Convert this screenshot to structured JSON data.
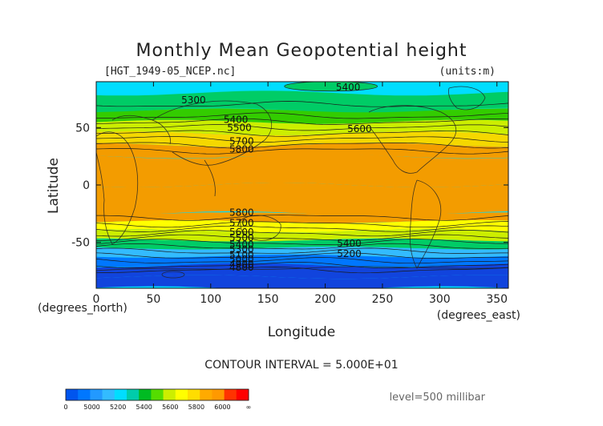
{
  "chart_data": {
    "type": "heatmap",
    "title": "Monthly Mean Geopotential height",
    "file_label": "[HGT_1949-05_NCEP.nc]",
    "units_label": "(units:m)",
    "xlabel": "Longitude",
    "ylabel": "Latitude",
    "x_unit_label": "(degrees_north)",
    "x_unit_label_right": "(degrees_east)",
    "xlim": [
      0,
      360
    ],
    "ylim": [
      -90,
      90
    ],
    "x_ticks": [
      0,
      50,
      100,
      150,
      200,
      250,
      300,
      350
    ],
    "y_ticks": [
      50,
      0,
      -50
    ],
    "contour_interval_text": "CONTOUR INTERVAL = 5.000E+01",
    "level_text": "level=500 millibar",
    "colorbar": {
      "colors": [
        "#0055ee",
        "#0077ff",
        "#2299ff",
        "#33bbff",
        "#00ddff",
        "#00ccaa",
        "#00bb22",
        "#55dd00",
        "#ccee00",
        "#ffff00",
        "#ffdd00",
        "#ffaa00",
        "#ff9900",
        "#ff3300",
        "#ff0000"
      ],
      "tick_labels": [
        "0",
        "5000",
        "5200",
        "5400",
        "5600",
        "5800",
        "6000",
        "∞"
      ]
    },
    "band_colors": {
      "h4800": "#1144dd",
      "h5000": "#0077ff",
      "h5100": "#2299ff",
      "h5200": "#33bbff",
      "h5300": "#00ddff",
      "h5400": "#00cc66",
      "h5500": "#33cc00",
      "h5600": "#ccee00",
      "h5700": "#ffff00",
      "h5800": "#f5d800",
      "h5850": "#f39c00"
    },
    "latitude_profile": [
      {
        "lat": 90,
        "height": 5250
      },
      {
        "lat": 80,
        "height": 5300
      },
      {
        "lat": 65,
        "height": 5400
      },
      {
        "lat": 55,
        "height": 5550
      },
      {
        "lat": 45,
        "height": 5700
      },
      {
        "lat": 35,
        "height": 5800
      },
      {
        "lat": 25,
        "height": 5850
      },
      {
        "lat": 0,
        "height": 5880
      },
      {
        "lat": -25,
        "height": 5850
      },
      {
        "lat": -32,
        "height": 5800
      },
      {
        "lat": -40,
        "height": 5650
      },
      {
        "lat": -48,
        "height": 5450
      },
      {
        "lat": -55,
        "height": 5250
      },
      {
        "lat": -62,
        "height": 5050
      },
      {
        "lat": -70,
        "height": 4900
      },
      {
        "lat": -80,
        "height": 4850
      },
      {
        "lat": -90,
        "height": 4850
      }
    ],
    "contour_labels": [
      {
        "text": "5400",
        "lon": 220,
        "lat": 85
      },
      {
        "text": "5300",
        "lon": 85,
        "lat": 74
      },
      {
        "text": "5400",
        "lon": 122,
        "lat": 57
      },
      {
        "text": "5500",
        "lon": 125,
        "lat": 50
      },
      {
        "text": "5600",
        "lon": 230,
        "lat": 49
      },
      {
        "text": "5700",
        "lon": 127,
        "lat": 38
      },
      {
        "text": "5800",
        "lon": 127,
        "lat": 31
      },
      {
        "text": "5800",
        "lon": 127,
        "lat": -24
      },
      {
        "text": "5700",
        "lon": 127,
        "lat": -33
      },
      {
        "text": "5600",
        "lon": 127,
        "lat": -41
      },
      {
        "text": "5500",
        "lon": 127,
        "lat": -46
      },
      {
        "text": "5400",
        "lon": 127,
        "lat": -52
      },
      {
        "text": "5400",
        "lon": 221,
        "lat": -51
      },
      {
        "text": "5300",
        "lon": 127,
        "lat": -56
      },
      {
        "text": "5200",
        "lon": 221,
        "lat": -60
      },
      {
        "text": "5100",
        "lon": 127,
        "lat": -61
      },
      {
        "text": "5000",
        "lon": 127,
        "lat": -65
      },
      {
        "text": "4900",
        "lon": 127,
        "lat": -69
      },
      {
        "text": "4800",
        "lon": 127,
        "lat": -72
      }
    ]
  }
}
